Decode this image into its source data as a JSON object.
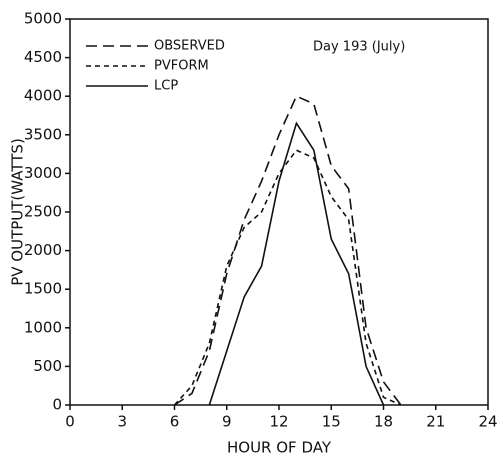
{
  "chart_data": {
    "type": "line",
    "annotation": "Day 193 (July)",
    "x_label": "HOUR OF DAY",
    "y_label": "PV OUTPUT(WATTS)",
    "x": [
      6,
      7,
      8,
      9,
      10,
      11,
      12,
      13,
      14,
      15,
      16,
      17,
      18,
      19
    ],
    "series": [
      {
        "name": "OBSERVED",
        "color": "#111111",
        "dash": "11,6",
        "values": [
          0,
          150,
          700,
          1700,
          2400,
          2900,
          3500,
          4000,
          3900,
          3100,
          2800,
          1000,
          300,
          0
        ]
      },
      {
        "name": "PVFORM",
        "color": "#111111",
        "dash": "5,4",
        "values": [
          0,
          250,
          800,
          1800,
          2300,
          2500,
          3000,
          3300,
          3200,
          2700,
          2400,
          800,
          100,
          0
        ]
      },
      {
        "name": "LCP",
        "color": "#111111",
        "dash": "none",
        "values": [
          null,
          null,
          0,
          700,
          1400,
          1800,
          2900,
          3650,
          3300,
          2150,
          1700,
          500,
          0,
          null
        ]
      }
    ],
    "xlim": [
      0,
      24
    ],
    "xticks": [
      0,
      3,
      6,
      9,
      12,
      15,
      18,
      21,
      24
    ],
    "ylim": [
      0,
      5000
    ],
    "yticks": [
      0,
      500,
      1000,
      1500,
      2000,
      2500,
      3000,
      3500,
      4000,
      4500,
      5000
    ],
    "legend": "upper-left"
  }
}
